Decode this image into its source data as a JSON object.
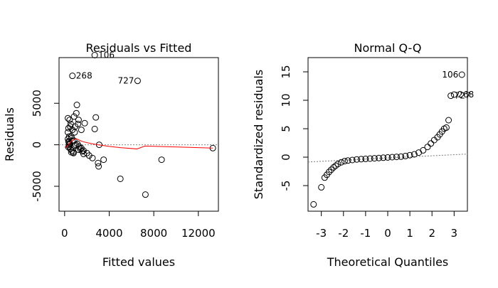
{
  "chart_data": [
    {
      "type": "scatter",
      "title": "Residuals vs Fitted",
      "xlabel": "Fitted values",
      "ylabel": "Residuals",
      "xlim": [
        -500,
        13800
      ],
      "ylim": [
        -8000,
        10500
      ],
      "xticks": [
        0,
        4000,
        8000,
        12000
      ],
      "xtick_labels": [
        "0",
        "4000",
        "8000",
        "12000"
      ],
      "yticks": [
        -5000,
        0,
        5000
      ],
      "ytick_labels": [
        "-5000",
        "0",
        "5000"
      ],
      "zero_line": 0,
      "smooth_line": {
        "color": "#ff0000",
        "x": [
          0,
          200,
          400,
          600,
          800,
          1000,
          1200,
          1400,
          1600,
          2000,
          3000,
          4000,
          5000,
          6500,
          7200,
          13300
        ],
        "y": [
          -300,
          -200,
          100,
          400,
          600,
          700,
          650,
          500,
          400,
          250,
          0,
          -200,
          -350,
          -500,
          -150,
          -400
        ]
      },
      "points": {
        "x": [
          2700,
          700,
          6550,
          5000,
          7250,
          8700,
          13300,
          2800,
          2700,
          3100,
          3500,
          3000,
          3050,
          2500,
          1100,
          1050,
          1250,
          1200,
          1800,
          1500,
          950,
          900,
          600,
          850,
          450,
          550,
          350,
          300,
          420,
          620,
          700,
          380,
          480,
          1000,
          1300,
          1400,
          1600,
          2000,
          2200,
          1700,
          750,
          650,
          520,
          350,
          400,
          460,
          1150,
          900,
          1250,
          1500,
          1700,
          850,
          300,
          500,
          700,
          300,
          350,
          420,
          600,
          800
        ],
        "y": [
          10800,
          8300,
          7700,
          -4100,
          -6000,
          -1800,
          -400,
          3300,
          1900,
          0,
          -1800,
          -2200,
          -2600,
          -1600,
          4800,
          3800,
          3000,
          2500,
          2600,
          1800,
          2200,
          1500,
          1000,
          500,
          3000,
          2500,
          2000,
          1500,
          1000,
          800,
          500,
          300,
          100,
          0,
          -200,
          -500,
          -800,
          -1000,
          -1300,
          -1100,
          -900,
          -700,
          -500,
          -300,
          0,
          200,
          100,
          -100,
          -600,
          -400,
          -700,
          3400,
          3200,
          2200,
          1800,
          700,
          400,
          -200,
          -900,
          -1000
        ]
      },
      "labeled_points": [
        {
          "label": "106",
          "x": 2700,
          "y": 10800,
          "side": "right"
        },
        {
          "label": "268",
          "x": 700,
          "y": 8300,
          "side": "right"
        },
        {
          "label": "727",
          "x": 6550,
          "y": 7700,
          "side": "left"
        }
      ]
    },
    {
      "type": "scatter",
      "title": "Normal Q-Q",
      "xlabel": "Theoretical Quantiles",
      "ylabel": "Standardized residuals",
      "xlim": [
        -3.6,
        3.6
      ],
      "ylim": [
        -9.5,
        17.5
      ],
      "xticks": [
        -3,
        -2,
        -1,
        0,
        1,
        2,
        3
      ],
      "xtick_labels": [
        "-3",
        "-2",
        "-1",
        "0",
        "1",
        "2",
        "3"
      ],
      "yticks": [
        -5,
        0,
        5,
        10,
        15
      ],
      "ytick_labels": [
        "-5",
        "0",
        "5",
        "10",
        "15"
      ],
      "reference_line": {
        "x": [
          -3.6,
          3.6
        ],
        "y": [
          -0.85,
          0.55
        ]
      },
      "points": {
        "x": [
          -3.35,
          -3.0,
          -2.85,
          -2.75,
          -2.65,
          -2.55,
          -2.45,
          -2.35,
          -2.25,
          -2.1,
          -1.95,
          -1.8,
          -1.6,
          -1.4,
          -1.2,
          -1.0,
          -0.8,
          -0.6,
          -0.4,
          -0.2,
          0.0,
          0.2,
          0.4,
          0.6,
          0.8,
          1.0,
          1.2,
          1.4,
          1.6,
          1.8,
          1.95,
          2.1,
          2.25,
          2.35,
          2.45,
          2.55,
          2.65,
          2.75,
          2.85,
          3.0,
          3.35
        ],
        "y": [
          -8.3,
          -5.3,
          -3.6,
          -3.1,
          -2.6,
          -2.2,
          -1.8,
          -1.5,
          -1.2,
          -0.9,
          -0.7,
          -0.6,
          -0.5,
          -0.4,
          -0.35,
          -0.3,
          -0.25,
          -0.2,
          -0.15,
          -0.1,
          -0.05,
          0.0,
          0.05,
          0.1,
          0.2,
          0.35,
          0.5,
          0.8,
          1.2,
          1.8,
          2.4,
          3.0,
          3.5,
          4.0,
          4.5,
          5.0,
          5.2,
          6.5,
          10.8,
          11.0,
          14.5
        ]
      },
      "labeled_points": [
        {
          "label": "106",
          "x": 3.35,
          "y": 14.5,
          "side": "left"
        },
        {
          "label": "727",
          "x": 2.85,
          "y": 10.8,
          "side": "right"
        },
        {
          "label": "268",
          "x": 3.0,
          "y": 11.0,
          "side": "right"
        }
      ]
    }
  ]
}
